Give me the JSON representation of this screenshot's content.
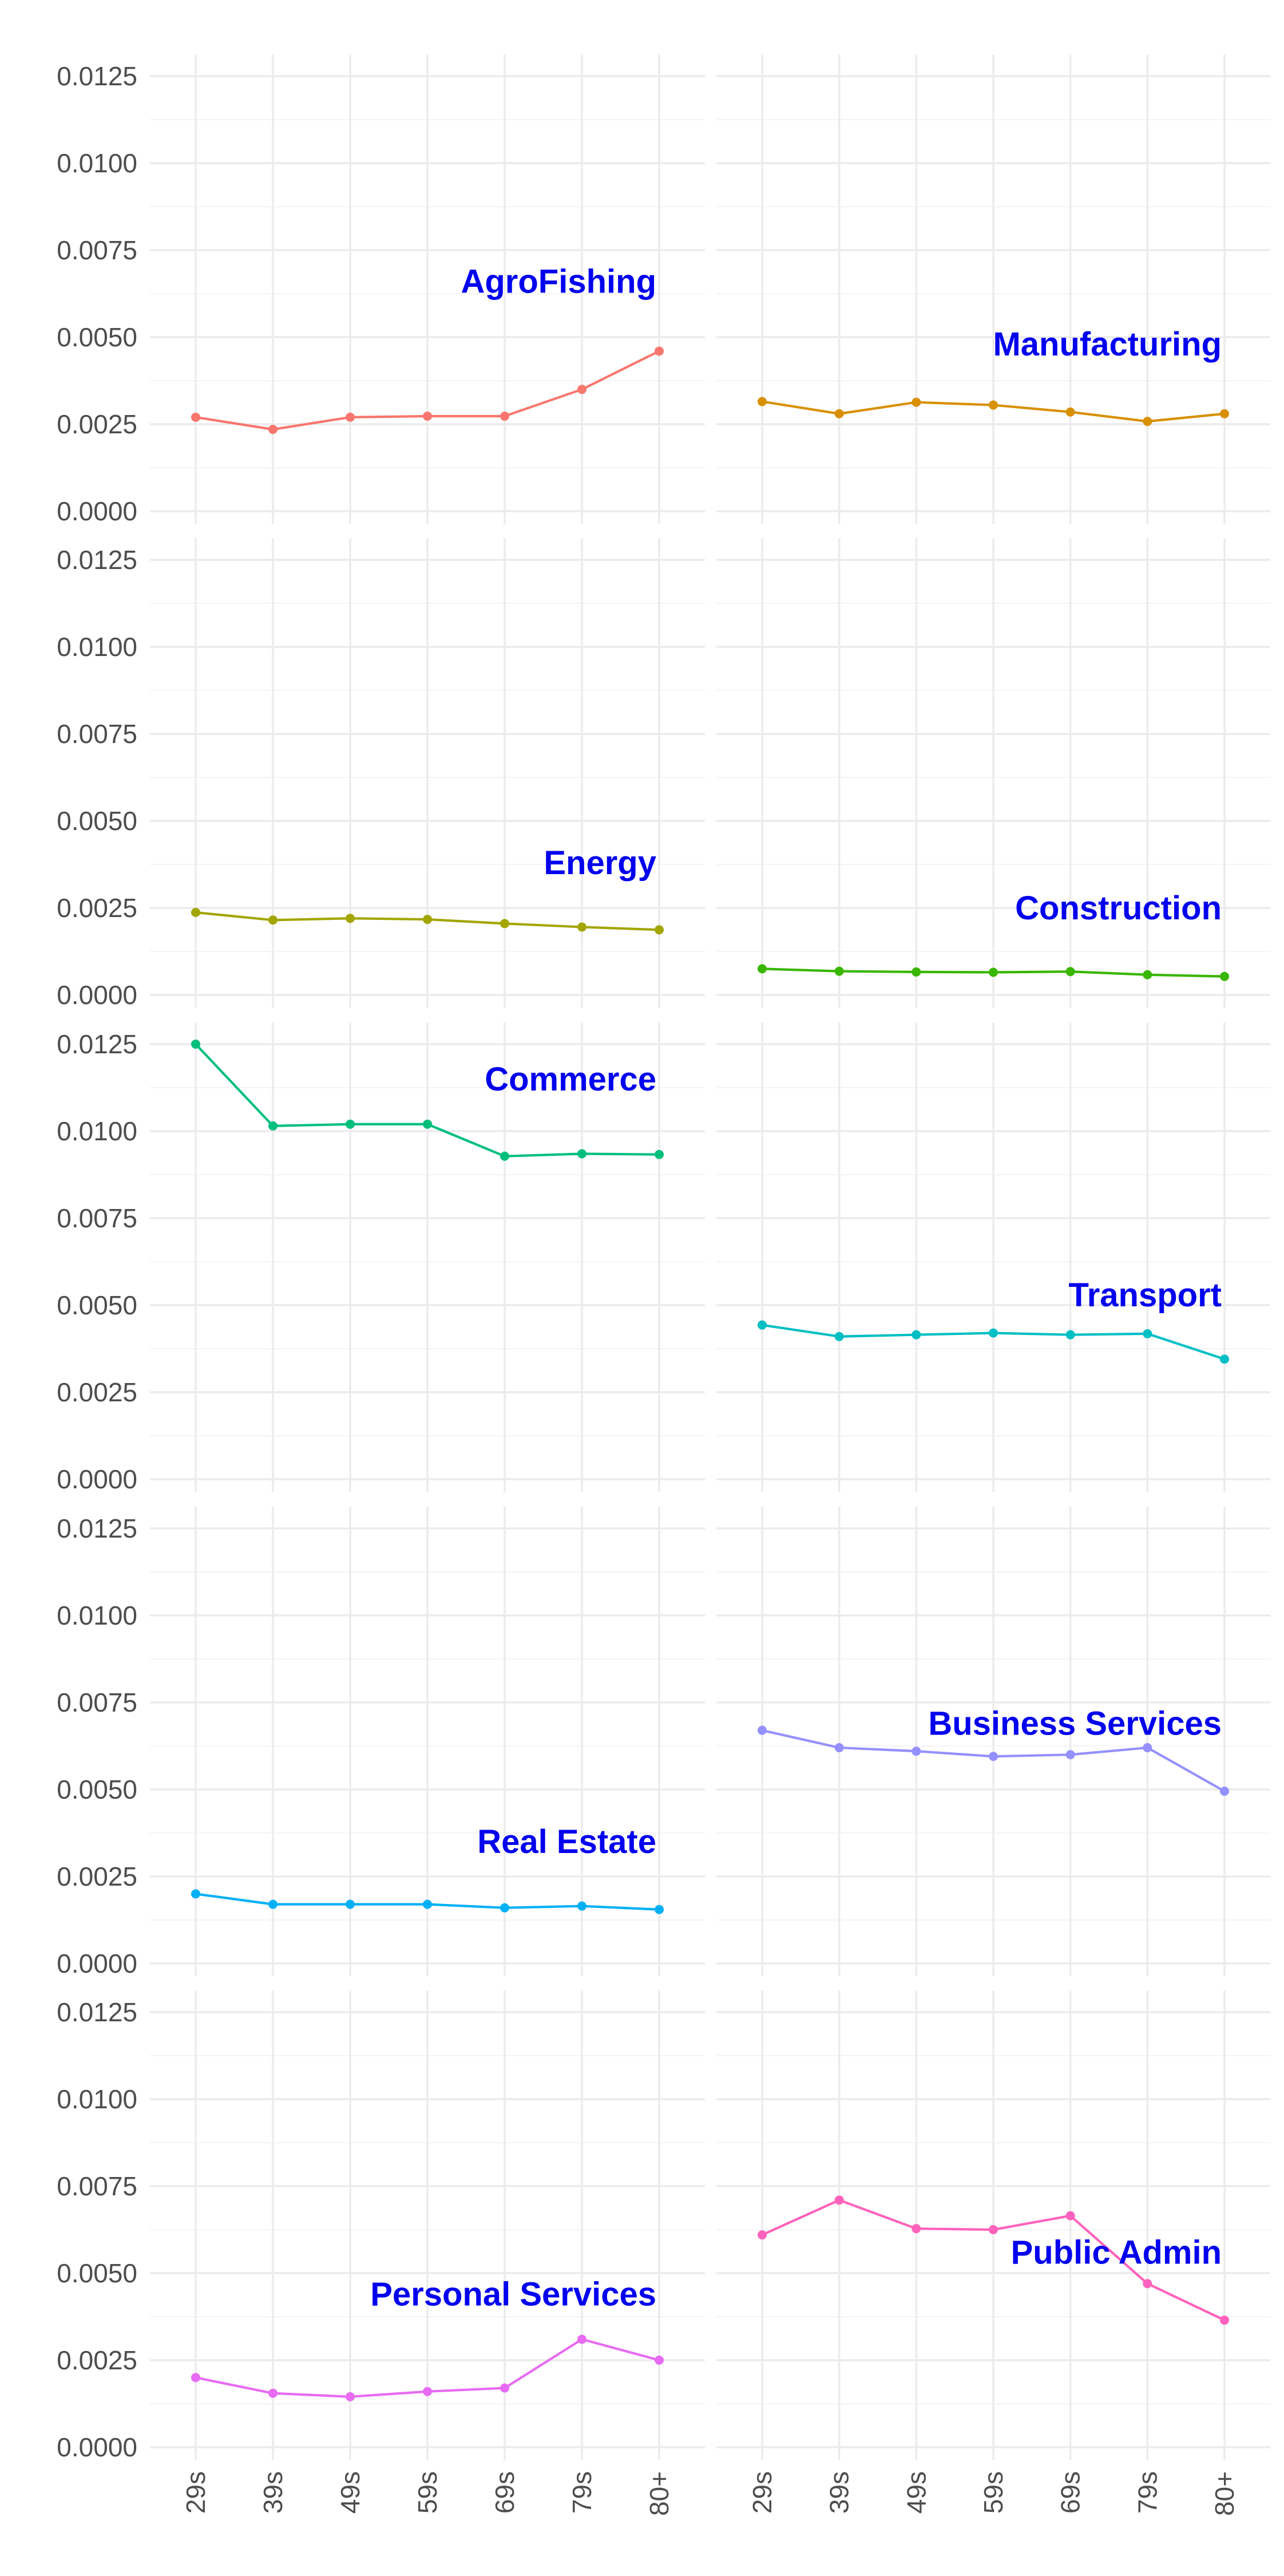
{
  "chart_data": {
    "type": "line",
    "layout": "small-multiples grid, 5 rows x 2 columns, shared axes",
    "categories": [
      "29s",
      "39s",
      "49s",
      "59s",
      "69s",
      "79s",
      "80+"
    ],
    "ylim": [
      0,
      0.0125
    ],
    "y_ticks": [
      "0.0000",
      "0.0025",
      "0.0050",
      "0.0075",
      "0.0100",
      "0.0125"
    ],
    "y_tick_values": [
      0,
      0.0025,
      0.005,
      0.0075,
      0.01,
      0.0125
    ],
    "grid": true,
    "label_color": "#0000ee",
    "panels": [
      {
        "name": "AgroFishing",
        "color": "#F8766D",
        "values": [
          0.0027,
          0.00235,
          0.0027,
          0.00273,
          0.00273,
          0.0035,
          0.0046
        ],
        "label_y": 0.0066
      },
      {
        "name": "Manufacturing",
        "color": "#D89000",
        "values": [
          0.00315,
          0.0028,
          0.00313,
          0.00305,
          0.00285,
          0.00258,
          0.0028
        ],
        "label_y": 0.0048
      },
      {
        "name": "Energy",
        "color": "#A3A500",
        "values": [
          0.00237,
          0.00215,
          0.0022,
          0.00217,
          0.00205,
          0.00195,
          0.00187
        ],
        "label_y": 0.0038
      },
      {
        "name": "Construction",
        "color": "#39B600",
        "values": [
          0.00075,
          0.00068,
          0.00066,
          0.00065,
          0.00067,
          0.00058,
          0.00053
        ],
        "label_y": 0.0025
      },
      {
        "name": "Commerce",
        "color": "#00BF7D",
        "values": [
          0.0125,
          0.01015,
          0.0102,
          0.0102,
          0.00928,
          0.00935,
          0.00933
        ],
        "label_y": 0.0115
      },
      {
        "name": "Transport",
        "color": "#00BFC4",
        "values": [
          0.00443,
          0.0041,
          0.00415,
          0.0042,
          0.00415,
          0.00418,
          0.00345
        ],
        "label_y": 0.0053
      },
      {
        "name": "Real Estate",
        "color": "#00B0F6",
        "values": [
          0.002,
          0.0017,
          0.0017,
          0.0017,
          0.0016,
          0.00165,
          0.00155
        ],
        "label_y": 0.0035
      },
      {
        "name": "Business Services",
        "color": "#9590FF",
        "values": [
          0.0067,
          0.0062,
          0.0061,
          0.00595,
          0.006,
          0.0062,
          0.00495
        ],
        "label_y": 0.0069
      },
      {
        "name": "Personal Services",
        "color": "#E76BF3",
        "values": [
          0.002,
          0.00155,
          0.00145,
          0.0016,
          0.0017,
          0.0031,
          0.0025
        ],
        "label_y": 0.0044
      },
      {
        "name": "Public Admin",
        "color": "#FF62BC",
        "values": [
          0.0061,
          0.0071,
          0.00628,
          0.00625,
          0.00665,
          0.0047,
          0.00365
        ],
        "label_y": 0.0056
      }
    ]
  }
}
